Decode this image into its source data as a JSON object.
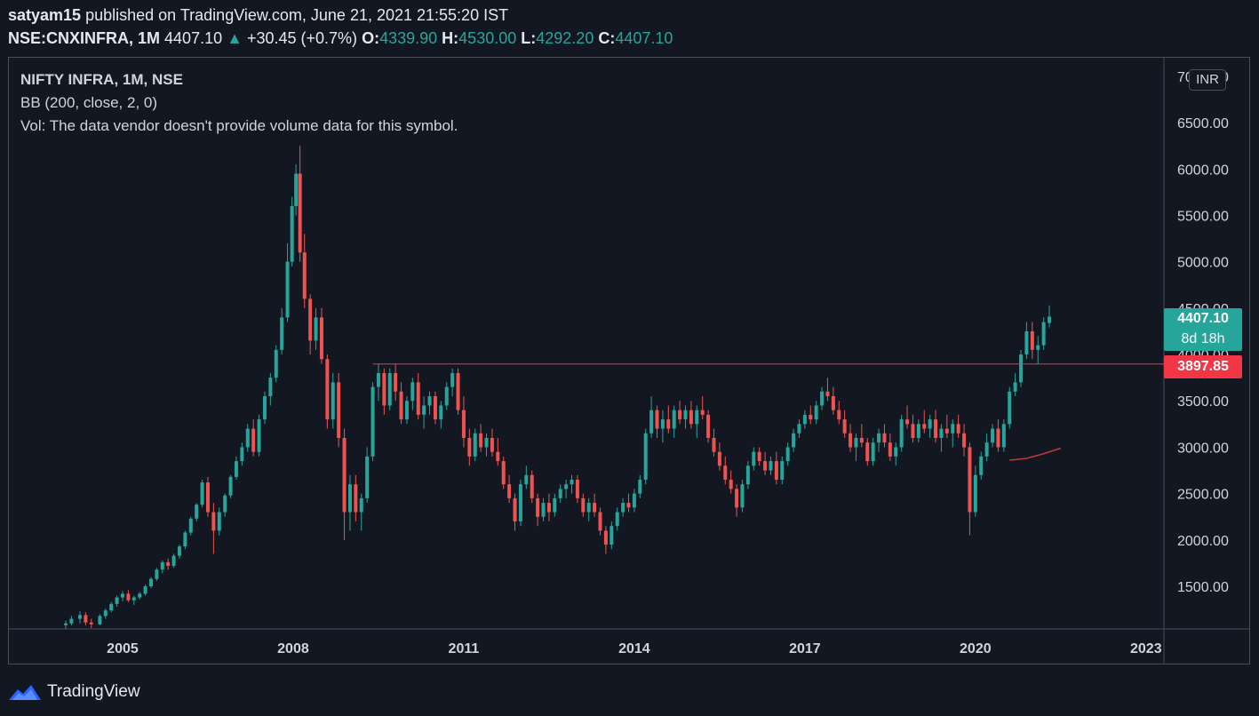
{
  "header": {
    "publisher": "satyam15",
    "published_text": " published on TradingView.com, June 21, 2021 21:55:20 IST",
    "symbol": "NSE:CNXINFRA, 1M",
    "last": "4407.10",
    "change": "+30.45 (+0.7%)",
    "o_label": "O:",
    "o": "4339.90",
    "h_label": "H:",
    "h": "4530.00",
    "l_label": "L:",
    "l": "4292.20",
    "c_label": "C:",
    "c": "4407.10"
  },
  "legend": {
    "title": "NIFTY INFRA, 1M, NSE",
    "bb": "BB (200, close, 2, 0)",
    "vol": "Vol: The data vendor doesn't provide volume data for this symbol."
  },
  "currency": "INR",
  "price_badge": {
    "price": "4407.10",
    "countdown": "8d 18h",
    "color": "#26a69a"
  },
  "line_badge": {
    "price": "3897.85",
    "color": "#f23645"
  },
  "logo_text": "TradingView",
  "colors": {
    "up": "#26a69a",
    "down": "#ef5350",
    "background": "#131722"
  },
  "chart_data": {
    "type": "candlestick",
    "title": "NIFTY INFRA, 1M, NSE",
    "x_ticks": [
      "2005",
      "2008",
      "2011",
      "2014",
      "2017",
      "2020",
      "2023"
    ],
    "y_ticks": [
      "1500.00",
      "2000.00",
      "2500.00",
      "3000.00",
      "3500.00",
      "4000.00",
      "4500.00",
      "5000.00",
      "5500.00",
      "6000.00",
      "6500.00",
      "7000.00"
    ],
    "ylim": [
      1050,
      7200
    ],
    "xlim": [
      2003.0,
      2023.3
    ],
    "horizontal_line": {
      "start": 2009.4,
      "value": 3897.85
    },
    "bb_basis": [
      [
        2020.6,
        2860
      ],
      [
        2020.9,
        2880
      ],
      [
        2021.2,
        2930
      ],
      [
        2021.5,
        2990
      ]
    ],
    "ohlc_estimated": [
      [
        2004.0,
        1080,
        1130,
        1040,
        1100
      ],
      [
        2004.1,
        1100,
        1180,
        1080,
        1150
      ],
      [
        2004.25,
        1150,
        1230,
        1100,
        1190
      ],
      [
        2004.35,
        1190,
        1220,
        1080,
        1110
      ],
      [
        2004.45,
        1110,
        1150,
        1050,
        1090
      ],
      [
        2004.6,
        1090,
        1200,
        1080,
        1180
      ],
      [
        2004.7,
        1180,
        1260,
        1150,
        1240
      ],
      [
        2004.8,
        1240,
        1330,
        1220,
        1310
      ],
      [
        2004.9,
        1310,
        1400,
        1280,
        1380
      ],
      [
        2005.0,
        1380,
        1450,
        1340,
        1420
      ],
      [
        2005.1,
        1420,
        1460,
        1330,
        1350
      ],
      [
        2005.2,
        1350,
        1400,
        1300,
        1380
      ],
      [
        2005.3,
        1380,
        1440,
        1360,
        1420
      ],
      [
        2005.4,
        1420,
        1520,
        1400,
        1500
      ],
      [
        2005.5,
        1500,
        1600,
        1480,
        1580
      ],
      [
        2005.6,
        1580,
        1700,
        1560,
        1680
      ],
      [
        2005.7,
        1680,
        1780,
        1640,
        1760
      ],
      [
        2005.8,
        1760,
        1800,
        1680,
        1720
      ],
      [
        2005.9,
        1720,
        1850,
        1700,
        1830
      ],
      [
        2006.0,
        1830,
        1950,
        1800,
        1930
      ],
      [
        2006.1,
        1930,
        2100,
        1900,
        2080
      ],
      [
        2006.2,
        2080,
        2250,
        2050,
        2230
      ],
      [
        2006.3,
        2230,
        2400,
        2200,
        2380
      ],
      [
        2006.4,
        2380,
        2650,
        2350,
        2620
      ],
      [
        2006.5,
        2620,
        2680,
        2250,
        2300
      ],
      [
        2006.6,
        2300,
        2400,
        1850,
        2100
      ],
      [
        2006.7,
        2100,
        2350,
        2050,
        2300
      ],
      [
        2006.8,
        2300,
        2500,
        2250,
        2480
      ],
      [
        2006.9,
        2480,
        2700,
        2450,
        2680
      ],
      [
        2007.0,
        2680,
        2900,
        2650,
        2850
      ],
      [
        2007.1,
        2850,
        3050,
        2800,
        3000
      ],
      [
        2007.2,
        3000,
        3250,
        2950,
        3200
      ],
      [
        2007.3,
        3200,
        3300,
        2900,
        2950
      ],
      [
        2007.4,
        2950,
        3350,
        2900,
        3300
      ],
      [
        2007.5,
        3300,
        3600,
        3250,
        3550
      ],
      [
        2007.6,
        3550,
        3800,
        3450,
        3750
      ],
      [
        2007.7,
        3750,
        4100,
        3700,
        4050
      ],
      [
        2007.8,
        4050,
        4500,
        4000,
        4400
      ],
      [
        2007.9,
        4400,
        5200,
        4350,
        5000
      ],
      [
        2007.98,
        5000,
        5700,
        4950,
        5600
      ],
      [
        2008.05,
        5600,
        6050,
        5500,
        5950
      ],
      [
        2008.12,
        5950,
        6250,
        5000,
        5100
      ],
      [
        2008.2,
        5100,
        5300,
        4500,
        4600
      ],
      [
        2008.3,
        4600,
        4650,
        4000,
        4150
      ],
      [
        2008.4,
        4150,
        4500,
        4050,
        4400
      ],
      [
        2008.5,
        4400,
        4500,
        3900,
        3950
      ],
      [
        2008.6,
        3950,
        4000,
        3200,
        3300
      ],
      [
        2008.7,
        3300,
        3800,
        3200,
        3700
      ],
      [
        2008.8,
        3700,
        3800,
        3000,
        3100
      ],
      [
        2008.9,
        3100,
        3200,
        2000,
        2300
      ],
      [
        2009.0,
        2300,
        2700,
        2100,
        2600
      ],
      [
        2009.1,
        2600,
        2700,
        2200,
        2300
      ],
      [
        2009.2,
        2300,
        2500,
        2100,
        2450
      ],
      [
        2009.3,
        2450,
        3000,
        2400,
        2900
      ],
      [
        2009.4,
        2900,
        3700,
        2850,
        3650
      ],
      [
        2009.5,
        3650,
        3900,
        3500,
        3800
      ],
      [
        2009.6,
        3800,
        3850,
        3350,
        3450
      ],
      [
        2009.7,
        3450,
        3850,
        3400,
        3800
      ],
      [
        2009.8,
        3800,
        3900,
        3500,
        3600
      ],
      [
        2009.9,
        3600,
        3700,
        3250,
        3300
      ],
      [
        2010.0,
        3300,
        3550,
        3250,
        3500
      ],
      [
        2010.1,
        3500,
        3750,
        3400,
        3700
      ],
      [
        2010.2,
        3700,
        3800,
        3300,
        3350
      ],
      [
        2010.3,
        3350,
        3550,
        3200,
        3450
      ],
      [
        2010.4,
        3450,
        3600,
        3350,
        3550
      ],
      [
        2010.5,
        3550,
        3600,
        3250,
        3300
      ],
      [
        2010.6,
        3300,
        3500,
        3200,
        3450
      ],
      [
        2010.7,
        3450,
        3700,
        3400,
        3650
      ],
      [
        2010.8,
        3650,
        3850,
        3550,
        3800
      ],
      [
        2010.9,
        3800,
        3850,
        3350,
        3400
      ],
      [
        2011.0,
        3400,
        3550,
        3000,
        3100
      ],
      [
        2011.1,
        3100,
        3200,
        2800,
        2900
      ],
      [
        2011.2,
        2900,
        3200,
        2850,
        3150
      ],
      [
        2011.3,
        3150,
        3250,
        2950,
        3000
      ],
      [
        2011.4,
        3000,
        3150,
        2900,
        3100
      ],
      [
        2011.5,
        3100,
        3200,
        2900,
        2950
      ],
      [
        2011.6,
        2950,
        3100,
        2800,
        2850
      ],
      [
        2011.7,
        2850,
        2900,
        2550,
        2600
      ],
      [
        2011.8,
        2600,
        2700,
        2400,
        2450
      ],
      [
        2011.9,
        2450,
        2500,
        2100,
        2200
      ],
      [
        2012.0,
        2200,
        2650,
        2150,
        2600
      ],
      [
        2012.1,
        2600,
        2800,
        2550,
        2700
      ],
      [
        2012.2,
        2700,
        2750,
        2400,
        2450
      ],
      [
        2012.3,
        2450,
        2500,
        2150,
        2250
      ],
      [
        2012.4,
        2250,
        2450,
        2200,
        2400
      ],
      [
        2012.5,
        2400,
        2500,
        2200,
        2300
      ],
      [
        2012.6,
        2300,
        2500,
        2250,
        2450
      ],
      [
        2012.7,
        2450,
        2600,
        2400,
        2550
      ],
      [
        2012.8,
        2550,
        2650,
        2450,
        2600
      ],
      [
        2012.9,
        2600,
        2700,
        2500,
        2650
      ],
      [
        2013.0,
        2650,
        2700,
        2400,
        2450
      ],
      [
        2013.1,
        2450,
        2500,
        2250,
        2300
      ],
      [
        2013.2,
        2300,
        2450,
        2200,
        2400
      ],
      [
        2013.3,
        2400,
        2500,
        2250,
        2300
      ],
      [
        2013.4,
        2300,
        2350,
        2050,
        2100
      ],
      [
        2013.5,
        2100,
        2150,
        1850,
        1950
      ],
      [
        2013.6,
        1950,
        2200,
        1900,
        2150
      ],
      [
        2013.7,
        2150,
        2350,
        2100,
        2300
      ],
      [
        2013.8,
        2300,
        2450,
        2250,
        2400
      ],
      [
        2013.9,
        2400,
        2500,
        2300,
        2350
      ],
      [
        2014.0,
        2350,
        2550,
        2300,
        2500
      ],
      [
        2014.1,
        2500,
        2700,
        2450,
        2650
      ],
      [
        2014.2,
        2650,
        3200,
        2600,
        3150
      ],
      [
        2014.3,
        3150,
        3550,
        3100,
        3400
      ],
      [
        2014.4,
        3400,
        3450,
        3100,
        3200
      ],
      [
        2014.5,
        3200,
        3400,
        3050,
        3300
      ],
      [
        2014.6,
        3300,
        3450,
        3150,
        3200
      ],
      [
        2014.7,
        3200,
        3450,
        3100,
        3400
      ],
      [
        2014.8,
        3400,
        3500,
        3250,
        3300
      ],
      [
        2014.9,
        3300,
        3450,
        3200,
        3400
      ],
      [
        2015.0,
        3400,
        3500,
        3200,
        3250
      ],
      [
        2015.1,
        3250,
        3450,
        3100,
        3400
      ],
      [
        2015.2,
        3400,
        3550,
        3300,
        3350
      ],
      [
        2015.3,
        3350,
        3400,
        3050,
        3100
      ],
      [
        2015.4,
        3100,
        3200,
        2900,
        2950
      ],
      [
        2015.5,
        2950,
        3050,
        2750,
        2800
      ],
      [
        2015.6,
        2800,
        2900,
        2600,
        2650
      ],
      [
        2015.7,
        2650,
        2750,
        2500,
        2550
      ],
      [
        2015.8,
        2550,
        2600,
        2250,
        2350
      ],
      [
        2015.9,
        2350,
        2650,
        2300,
        2600
      ],
      [
        2016.0,
        2600,
        2850,
        2550,
        2800
      ],
      [
        2016.1,
        2800,
        3000,
        2750,
        2950
      ],
      [
        2016.2,
        2950,
        3000,
        2800,
        2850
      ],
      [
        2016.3,
        2850,
        2950,
        2700,
        2750
      ],
      [
        2016.4,
        2750,
        2900,
        2700,
        2850
      ],
      [
        2016.5,
        2850,
        2950,
        2600,
        2650
      ],
      [
        2016.6,
        2650,
        2900,
        2600,
        2850
      ],
      [
        2016.7,
        2850,
        3050,
        2800,
        3000
      ],
      [
        2016.8,
        3000,
        3200,
        2950,
        3150
      ],
      [
        2016.9,
        3150,
        3300,
        3100,
        3250
      ],
      [
        2017.0,
        3250,
        3400,
        3200,
        3350
      ],
      [
        2017.1,
        3350,
        3450,
        3250,
        3300
      ],
      [
        2017.2,
        3300,
        3500,
        3250,
        3450
      ],
      [
        2017.3,
        3450,
        3650,
        3400,
        3600
      ],
      [
        2017.4,
        3600,
        3750,
        3500,
        3550
      ],
      [
        2017.5,
        3550,
        3650,
        3350,
        3400
      ],
      [
        2017.6,
        3400,
        3500,
        3250,
        3300
      ],
      [
        2017.7,
        3300,
        3400,
        3100,
        3150
      ],
      [
        2017.8,
        3150,
        3250,
        2950,
        3000
      ],
      [
        2017.9,
        3000,
        3150,
        2850,
        3100
      ],
      [
        2018.0,
        3100,
        3250,
        3000,
        3050
      ],
      [
        2018.1,
        3050,
        3100,
        2800,
        2850
      ],
      [
        2018.2,
        2850,
        3100,
        2800,
        3050
      ],
      [
        2018.3,
        3050,
        3200,
        2950,
        3150
      ],
      [
        2018.4,
        3150,
        3250,
        3000,
        3050
      ],
      [
        2018.5,
        3050,
        3150,
        2850,
        2900
      ],
      [
        2018.6,
        2900,
        3050,
        2800,
        3000
      ],
      [
        2018.7,
        3000,
        3350,
        2950,
        3300
      ],
      [
        2018.8,
        3300,
        3450,
        3200,
        3250
      ],
      [
        2018.9,
        3250,
        3350,
        3050,
        3100
      ],
      [
        2019.0,
        3100,
        3300,
        3050,
        3250
      ],
      [
        2019.1,
        3250,
        3400,
        3150,
        3200
      ],
      [
        2019.2,
        3200,
        3350,
        3100,
        3300
      ],
      [
        2019.3,
        3300,
        3400,
        3050,
        3100
      ],
      [
        2019.4,
        3100,
        3250,
        2950,
        3200
      ],
      [
        2019.5,
        3200,
        3350,
        3100,
        3150
      ],
      [
        2019.6,
        3150,
        3300,
        3000,
        3250
      ],
      [
        2019.7,
        3250,
        3350,
        3100,
        3150
      ],
      [
        2019.8,
        3150,
        3250,
        2900,
        3000
      ],
      [
        2019.9,
        3000,
        3050,
        2050,
        2300
      ],
      [
        2020.0,
        2300,
        2800,
        2250,
        2700
      ],
      [
        2020.1,
        2700,
        2950,
        2650,
        2900
      ],
      [
        2020.2,
        2900,
        3150,
        2850,
        3050
      ],
      [
        2020.3,
        3050,
        3250,
        3000,
        3200
      ],
      [
        2020.4,
        3200,
        3300,
        2950,
        3000
      ],
      [
        2020.5,
        3000,
        3300,
        2950,
        3250
      ],
      [
        2020.6,
        3250,
        3650,
        3200,
        3600
      ],
      [
        2020.7,
        3600,
        3800,
        3550,
        3700
      ],
      [
        2020.8,
        3700,
        4050,
        3650,
        4000
      ],
      [
        2020.9,
        4000,
        4350,
        3950,
        4250
      ],
      [
        2021.0,
        4250,
        4350,
        3950,
        4050
      ],
      [
        2021.1,
        4050,
        4200,
        3900,
        4100
      ],
      [
        2021.2,
        4100,
        4400,
        4050,
        4350
      ],
      [
        2021.3,
        4339.9,
        4530,
        4292.2,
        4407.1
      ]
    ]
  }
}
